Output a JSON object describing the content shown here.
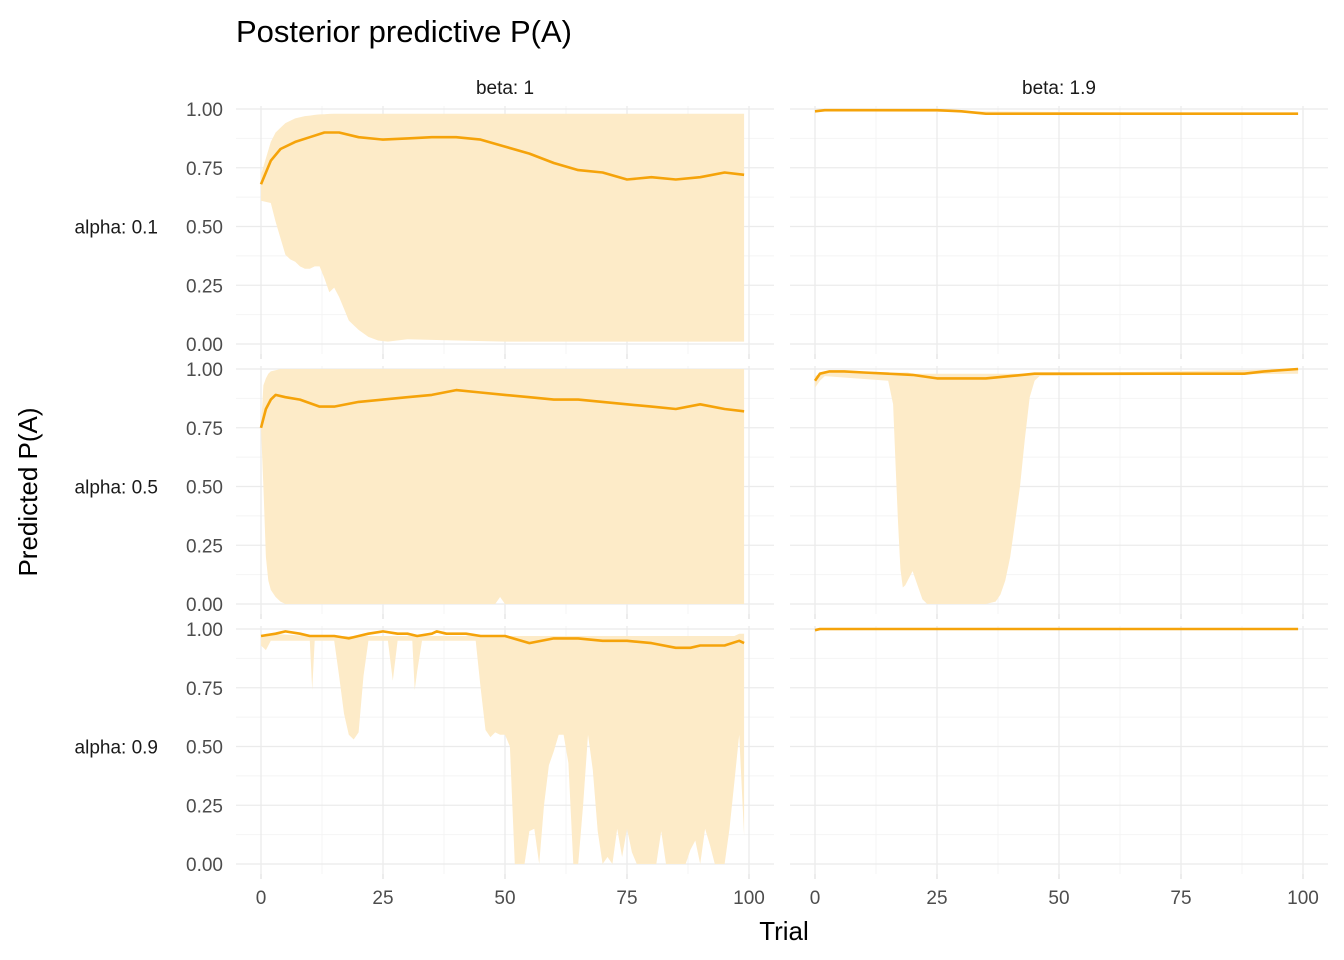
{
  "chart_data": {
    "type": "area",
    "title": "Posterior predictive P(A)",
    "xlabel": "Trial",
    "ylabel": "Predicted P(A)",
    "xlim": [
      0,
      100
    ],
    "ylim": [
      0,
      1
    ],
    "x_ticks": [
      "0",
      "25",
      "50",
      "75",
      "100"
    ],
    "y_ticks": [
      "0.00",
      "0.25",
      "0.50",
      "0.75",
      "1.00"
    ],
    "grid": true,
    "colors": {
      "line": "#F5A30A",
      "band": "#FDEBC8"
    },
    "facet_cols": [
      "beta: 1",
      "beta: 1.9"
    ],
    "facet_rows": [
      "alpha: 0.1",
      "alpha: 0.5",
      "alpha: 0.9"
    ],
    "panels": [
      {
        "row": 0,
        "col": 0,
        "mean": {
          "x": [
            0,
            2,
            4,
            7,
            10,
            13,
            16,
            20,
            25,
            30,
            35,
            40,
            45,
            50,
            55,
            60,
            65,
            70,
            75,
            80,
            85,
            90,
            95,
            99
          ],
          "y": [
            0.68,
            0.78,
            0.83,
            0.86,
            0.88,
            0.9,
            0.9,
            0.88,
            0.87,
            0.875,
            0.88,
            0.88,
            0.87,
            0.84,
            0.81,
            0.77,
            0.74,
            0.73,
            0.7,
            0.71,
            0.7,
            0.71,
            0.73,
            0.72
          ]
        },
        "band": {
          "x": [
            0,
            2,
            3,
            4,
            5,
            6,
            7,
            8,
            9,
            10,
            11,
            12,
            13,
            14,
            15,
            16,
            17,
            18,
            19,
            20,
            22,
            24,
            26,
            30,
            40,
            50,
            60,
            70,
            80,
            90,
            99
          ],
          "lower": [
            0.61,
            0.6,
            0.52,
            0.45,
            0.38,
            0.36,
            0.35,
            0.33,
            0.32,
            0.32,
            0.33,
            0.33,
            0.28,
            0.22,
            0.24,
            0.2,
            0.15,
            0.1,
            0.08,
            0.06,
            0.03,
            0.015,
            0.01,
            0.02,
            0.015,
            0.01,
            0.01,
            0.01,
            0.01,
            0.01,
            0.01
          ],
          "upper": [
            0.72,
            0.86,
            0.9,
            0.92,
            0.94,
            0.95,
            0.96,
            0.965,
            0.97,
            0.972,
            0.975,
            0.977,
            0.978,
            0.979,
            0.98,
            0.98,
            0.98,
            0.98,
            0.98,
            0.98,
            0.98,
            0.98,
            0.98,
            0.98,
            0.98,
            0.98,
            0.98,
            0.98,
            0.98,
            0.98,
            0.98
          ]
        }
      },
      {
        "row": 0,
        "col": 1,
        "mean": {
          "x": [
            0,
            2,
            10,
            20,
            25,
            30,
            35,
            40,
            60,
            80,
            99
          ],
          "y": [
            0.99,
            0.995,
            0.995,
            0.995,
            0.995,
            0.99,
            0.98,
            0.98,
            0.98,
            0.98,
            0.98
          ]
        },
        "band": {
          "x": [
            0,
            99
          ],
          "lower": [
            0.99,
            0.98
          ],
          "upper": [
            0.995,
            0.98
          ]
        }
      },
      {
        "row": 1,
        "col": 0,
        "mean": {
          "x": [
            0,
            1,
            2,
            3,
            5,
            8,
            12,
            15,
            20,
            25,
            30,
            35,
            40,
            45,
            50,
            55,
            60,
            65,
            70,
            75,
            80,
            85,
            90,
            95,
            99
          ],
          "y": [
            0.75,
            0.83,
            0.87,
            0.89,
            0.88,
            0.87,
            0.84,
            0.84,
            0.86,
            0.87,
            0.88,
            0.89,
            0.91,
            0.9,
            0.89,
            0.88,
            0.87,
            0.87,
            0.86,
            0.85,
            0.84,
            0.83,
            0.85,
            0.83,
            0.82
          ]
        },
        "band": {
          "x": [
            0,
            0.5,
            1,
            1.5,
            2,
            3,
            4,
            5,
            48,
            49,
            50,
            51,
            52,
            99
          ],
          "lower": [
            0.75,
            0.5,
            0.2,
            0.1,
            0.06,
            0.03,
            0.01,
            0.0,
            0.0,
            0.03,
            0.0,
            0.0,
            0.0,
            0.0
          ],
          "upper": [
            0.75,
            0.93,
            0.96,
            0.98,
            0.99,
            0.995,
            1.0,
            1.0,
            1.0,
            1.0,
            1.0,
            1.0,
            1.0,
            1.0
          ]
        }
      },
      {
        "row": 1,
        "col": 1,
        "mean": {
          "x": [
            0,
            1,
            3,
            6,
            10,
            15,
            20,
            25,
            30,
            35,
            40,
            45,
            60,
            80,
            88,
            92,
            99
          ],
          "y": [
            0.95,
            0.98,
            0.99,
            0.99,
            0.985,
            0.98,
            0.975,
            0.96,
            0.96,
            0.96,
            0.97,
            0.98,
            0.98,
            0.98,
            0.98,
            0.99,
            1.0
          ]
        },
        "band": {
          "x": [
            0,
            1,
            2,
            15,
            16,
            16.5,
            17,
            17.5,
            18,
            18.5,
            19,
            20,
            21,
            22,
            23,
            25,
            30,
            35,
            37,
            38,
            39,
            40,
            41,
            42,
            43,
            44,
            45,
            46,
            99
          ],
          "lower": [
            0.92,
            0.95,
            0.97,
            0.95,
            0.85,
            0.6,
            0.35,
            0.15,
            0.07,
            0.08,
            0.1,
            0.14,
            0.08,
            0.02,
            0.0,
            0.0,
            0.0,
            0.0,
            0.01,
            0.04,
            0.1,
            0.2,
            0.35,
            0.5,
            0.7,
            0.88,
            0.95,
            0.97,
            0.98
          ],
          "upper": [
            0.97,
            0.98,
            0.99,
            0.985,
            0.985,
            0.985,
            0.985,
            0.985,
            0.985,
            0.985,
            0.985,
            0.98,
            0.98,
            0.98,
            0.98,
            0.98,
            0.98,
            0.98,
            0.98,
            0.98,
            0.98,
            0.98,
            0.98,
            0.98,
            0.98,
            0.98,
            0.98,
            0.98,
            1.0
          ]
        }
      },
      {
        "row": 1,
        "col": 2,
        "skip": true
      },
      {
        "row": 2,
        "col": 0,
        "mean": {
          "x": [
            0,
            3,
            5,
            8,
            10,
            12,
            15,
            18,
            20,
            22,
            25,
            28,
            30,
            32,
            35,
            36,
            38,
            40,
            42,
            45,
            50,
            55,
            60,
            65,
            70,
            75,
            80,
            85,
            88,
            90,
            95,
            98,
            99
          ],
          "y": [
            0.97,
            0.98,
            0.99,
            0.98,
            0.97,
            0.97,
            0.97,
            0.96,
            0.97,
            0.98,
            0.99,
            0.98,
            0.98,
            0.97,
            0.98,
            0.99,
            0.98,
            0.98,
            0.98,
            0.97,
            0.97,
            0.94,
            0.96,
            0.96,
            0.95,
            0.95,
            0.94,
            0.92,
            0.92,
            0.93,
            0.93,
            0.95,
            0.94
          ]
        },
        "band": {
          "x": [
            0,
            1,
            2,
            10,
            10.5,
            11,
            15,
            16,
            17,
            18,
            19,
            20,
            21,
            22,
            26,
            27,
            28,
            31,
            31.5,
            32,
            33,
            34,
            44,
            45,
            46,
            47,
            48,
            49,
            50,
            51,
            52,
            53,
            54,
            55,
            56,
            57,
            58,
            59,
            60,
            61,
            62,
            63,
            64,
            65,
            66,
            67,
            68,
            69,
            70,
            71,
            72,
            73,
            74,
            75,
            76,
            77,
            78,
            79,
            80,
            81,
            82,
            83,
            84,
            85,
            86,
            87,
            88,
            89,
            90,
            91,
            92,
            93,
            94,
            95,
            96,
            97,
            98,
            99
          ],
          "lower": [
            0.93,
            0.91,
            0.95,
            0.95,
            0.74,
            0.95,
            0.95,
            0.8,
            0.64,
            0.55,
            0.53,
            0.56,
            0.8,
            0.95,
            0.95,
            0.78,
            0.95,
            0.95,
            0.74,
            0.82,
            0.95,
            0.95,
            0.95,
            0.75,
            0.57,
            0.54,
            0.56,
            0.55,
            0.55,
            0.5,
            0.0,
            0.0,
            0.0,
            0.14,
            0.15,
            0.0,
            0.25,
            0.42,
            0.48,
            0.55,
            0.55,
            0.43,
            0.0,
            0.0,
            0.25,
            0.55,
            0.4,
            0.14,
            0.0,
            0.03,
            0.0,
            0.15,
            0.03,
            0.15,
            0.05,
            0.0,
            0.0,
            0.0,
            0.0,
            0.0,
            0.14,
            0.0,
            0.0,
            0.0,
            0.0,
            0.0,
            0.06,
            0.1,
            0.0,
            0.15,
            0.08,
            0.0,
            0.0,
            0.0,
            0.15,
            0.35,
            0.55,
            0.12
          ],
          "upper": [
            0.97,
            0.98,
            0.98,
            0.97,
            0.97,
            0.97,
            0.97,
            0.97,
            0.97,
            0.97,
            0.97,
            0.97,
            0.97,
            0.97,
            0.97,
            0.97,
            0.97,
            0.97,
            0.97,
            0.97,
            0.97,
            0.97,
            0.97,
            0.97,
            0.97,
            0.97,
            0.97,
            0.97,
            0.97,
            0.97,
            0.97,
            0.97,
            0.97,
            0.97,
            0.97,
            0.97,
            0.97,
            0.97,
            0.97,
            0.97,
            0.97,
            0.97,
            0.97,
            0.97,
            0.97,
            0.97,
            0.97,
            0.97,
            0.97,
            0.97,
            0.97,
            0.97,
            0.97,
            0.97,
            0.97,
            0.97,
            0.97,
            0.97,
            0.97,
            0.97,
            0.97,
            0.97,
            0.97,
            0.97,
            0.97,
            0.97,
            0.97,
            0.97,
            0.97,
            0.97,
            0.97,
            0.97,
            0.97,
            0.97,
            0.97,
            0.97,
            0.98,
            0.98
          ]
        }
      },
      {
        "row": 2,
        "col": 1,
        "mean": {
          "x": [
            0,
            1,
            99
          ],
          "y": [
            0.995,
            1.0,
            1.0
          ]
        },
        "band": {
          "x": [
            0,
            99
          ],
          "lower": [
            0.995,
            1.0
          ],
          "upper": [
            1.0,
            1.0
          ]
        }
      }
    ]
  }
}
